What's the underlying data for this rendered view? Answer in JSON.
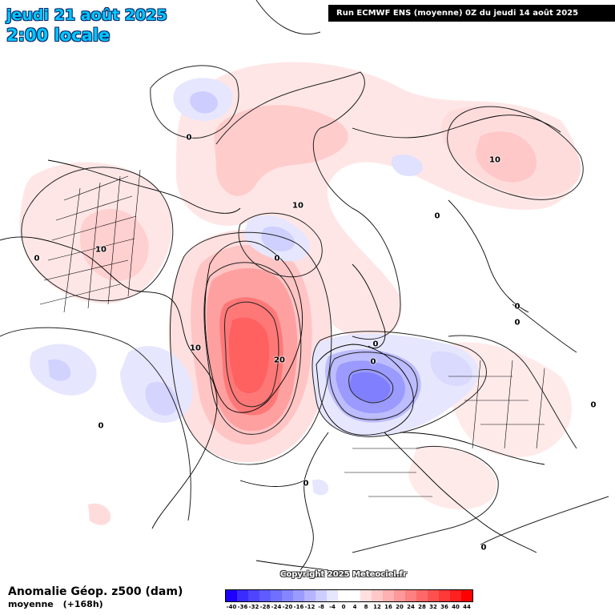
{
  "header": {
    "date": "jeudi 21 août 2025",
    "time": "2:00 locale",
    "run_info": "Run ECMWF ENS (moyenne) 0Z du jeudi 14 août 2025"
  },
  "footer": {
    "title": "Anomalie Géop. z500 (dam)",
    "subtitle": "moyenne",
    "lead": "(+168h)",
    "copyright": "Copyright 2025 Meteociel.fr"
  },
  "legend": {
    "ticks": [
      "-40",
      "-36",
      "-32",
      "-28",
      "-24",
      "-20",
      "-16",
      "-12",
      "-8",
      "-4",
      "0",
      "4",
      "8",
      "12",
      "16",
      "20",
      "24",
      "28",
      "32",
      "36",
      "40",
      "44"
    ],
    "colors": [
      "#1e00ff",
      "#3a2cff",
      "#4f44ff",
      "#5f5cff",
      "#7070ff",
      "#8585ff",
      "#9b9bff",
      "#b4b4ff",
      "#cdcdff",
      "#e6e6ff",
      "#ffffff",
      "#ffffff",
      "#ffe0e0",
      "#ffc8c8",
      "#ffb0b0",
      "#ff9898",
      "#ff8080",
      "#ff6868",
      "#ff5050",
      "#ff3838",
      "#ff2020",
      "#ff0000"
    ]
  },
  "contour_labels": [
    {
      "text": "0"
    },
    {
      "text": "0"
    },
    {
      "text": "10"
    },
    {
      "text": "0"
    },
    {
      "text": "10"
    },
    {
      "text": "0"
    },
    {
      "text": "10"
    },
    {
      "text": "0"
    },
    {
      "text": "20"
    },
    {
      "text": "0"
    },
    {
      "text": "10"
    },
    {
      "text": "0"
    },
    {
      "text": "0"
    },
    {
      "text": "0"
    },
    {
      "text": "0"
    },
    {
      "text": "0"
    },
    {
      "text": "0"
    }
  ]
}
